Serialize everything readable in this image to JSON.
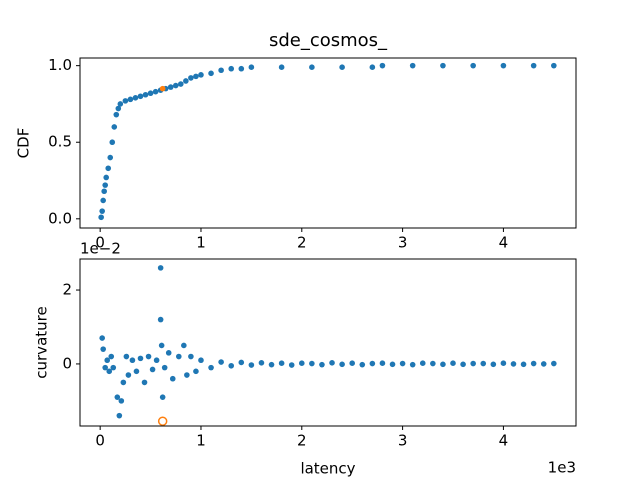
{
  "chart_data": [
    {
      "type": "scatter",
      "title": "sde_cosmos_",
      "ylabel": "CDF",
      "xlim": [
        -0.2,
        4.72
      ],
      "ylim": [
        -0.06,
        1.05
      ],
      "xticks": [
        0,
        1,
        2,
        3,
        4
      ],
      "yticks": [
        {
          "value": 0,
          "label": "0.0"
        },
        {
          "value": 0.5,
          "label": "0.5"
        },
        {
          "value": 1,
          "label": "1.0"
        }
      ],
      "series": [
        {
          "color": "#1f77b4",
          "x": [
            0.01,
            0.02,
            0.03,
            0.04,
            0.05,
            0.06,
            0.08,
            0.1,
            0.12,
            0.14,
            0.16,
            0.18,
            0.2,
            0.25,
            0.3,
            0.35,
            0.4,
            0.45,
            0.5,
            0.55,
            0.6,
            0.65,
            0.7,
            0.75,
            0.8,
            0.85,
            0.9,
            0.95,
            1.0,
            1.1,
            1.2,
            1.3,
            1.4,
            1.5,
            1.8,
            2.1,
            2.4,
            2.7,
            2.8,
            3.1,
            3.4,
            3.7,
            4.0,
            4.3,
            4.5
          ],
          "values": [
            0.01,
            0.05,
            0.12,
            0.18,
            0.22,
            0.27,
            0.33,
            0.4,
            0.5,
            0.6,
            0.68,
            0.72,
            0.75,
            0.77,
            0.78,
            0.79,
            0.8,
            0.81,
            0.82,
            0.83,
            0.84,
            0.85,
            0.86,
            0.87,
            0.88,
            0.9,
            0.92,
            0.93,
            0.94,
            0.95,
            0.97,
            0.98,
            0.98,
            0.99,
            0.99,
            0.99,
            0.99,
            0.99,
            1.0,
            1.0,
            1.0,
            1.0,
            1.0,
            1.0,
            1.0
          ]
        },
        {
          "color": "#ff7f0e",
          "x": [
            0.62
          ],
          "values": [
            0.85
          ]
        }
      ]
    },
    {
      "type": "scatter",
      "ylabel": "curvature",
      "xlabel": "latency",
      "x_offset": "1e3",
      "y_offset": "1e−2",
      "xlim": [
        -0.2,
        4.72
      ],
      "ylim": [
        -1.68,
        2.84
      ],
      "xticks": [
        0,
        1,
        2,
        3,
        4
      ],
      "yticks": [
        0,
        2
      ],
      "series": [
        {
          "color": "#1f77b4",
          "x": [
            0.02,
            0.03,
            0.05,
            0.07,
            0.09,
            0.11,
            0.13,
            0.17,
            0.19,
            0.21,
            0.23,
            0.26,
            0.28,
            0.32,
            0.36,
            0.4,
            0.44,
            0.48,
            0.52,
            0.56,
            0.6,
            0.6,
            0.61,
            0.62,
            0.64,
            0.68,
            0.72,
            0.78,
            0.83,
            0.86,
            0.9,
            0.95,
            1.0,
            1.1,
            1.2,
            1.3,
            1.4,
            1.5,
            1.6,
            1.7,
            1.8,
            1.9,
            2.0,
            2.1,
            2.2,
            2.3,
            2.4,
            2.5,
            2.6,
            2.7,
            2.8,
            2.9,
            3.0,
            3.1,
            3.2,
            3.3,
            3.4,
            3.5,
            3.6,
            3.7,
            3.8,
            3.9,
            4.0,
            4.1,
            4.2,
            4.3,
            4.4,
            4.5
          ],
          "values": [
            0.7,
            0.4,
            -0.1,
            0.1,
            -0.2,
            0.2,
            -0.1,
            -0.9,
            -1.4,
            -1.0,
            -0.5,
            0.2,
            -0.3,
            0.1,
            -0.2,
            0.15,
            -0.5,
            0.2,
            -0.15,
            0.1,
            2.6,
            1.2,
            0.5,
            -0.9,
            -0.1,
            0.3,
            -0.4,
            0.2,
            0.5,
            -0.3,
            0.2,
            -0.2,
            0.1,
            -0.1,
            0.05,
            -0.05,
            0.04,
            -0.03,
            0.03,
            -0.02,
            0.02,
            -0.03,
            0.02,
            0.01,
            -0.02,
            0.03,
            -0.01,
            0.02,
            -0.02,
            0.01,
            0.02,
            -0.01,
            0.01,
            -0.02,
            0.02,
            0.01,
            -0.01,
            0.02,
            -0.01,
            0.01,
            0.01,
            -0.01,
            0.02,
            0.0,
            -0.01,
            0.01,
            0.0,
            0.01
          ]
        },
        {
          "color": "#ff7f0e",
          "hollow": true,
          "x": [
            0.62
          ],
          "values": [
            -1.55
          ]
        }
      ]
    }
  ]
}
